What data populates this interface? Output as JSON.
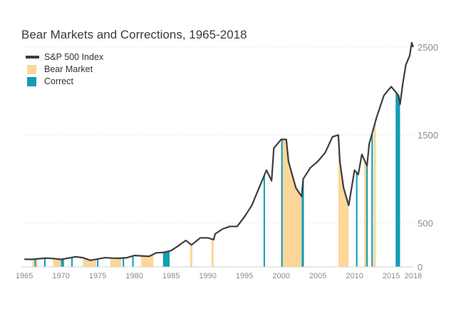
{
  "chart_data": {
    "type": "line",
    "title": "Bear Markets and Corrections, 1965-2018",
    "xlabel": "",
    "ylabel": "",
    "xlim": [
      1964.6,
      2018.0
    ],
    "ylim": [
      0,
      2500
    ],
    "x_ticks": [
      1965,
      1970,
      1975,
      1980,
      1985,
      1990,
      1995,
      2000,
      2005,
      2010,
      2015,
      2018
    ],
    "x_tick_labels": [
      "1965",
      "1970",
      "1975",
      "1980",
      "1985",
      "1990",
      "1995",
      "2000",
      "2005",
      "2010",
      "2015",
      "2018"
    ],
    "y_ticks": [
      0,
      500,
      1500,
      2500
    ],
    "y_tick_labels": [
      "0",
      "500",
      "1500",
      "2500"
    ],
    "grid": true,
    "legend": {
      "position": "top-left",
      "entries": [
        {
          "label": "S&P 500 Index",
          "color": "#3d3d3d",
          "kind": "line"
        },
        {
          "label": "Bear Market",
          "color": "#fdd699",
          "kind": "box"
        },
        {
          "label": "Correct",
          "color": "#149cb5",
          "kind": "box"
        }
      ]
    },
    "series": [
      {
        "name": "S&P 500 Index",
        "color": "#3d3d3d",
        "x": [
          1965,
          1966,
          1967,
          1968,
          1969,
          1970,
          1971,
          1972,
          1973,
          1974,
          1975,
          1976,
          1977,
          1978,
          1979,
          1980,
          1981,
          1982,
          1983,
          1984,
          1985,
          1986,
          1987,
          1987.8,
          1988,
          1989,
          1990,
          1990.8,
          1991,
          1992,
          1993,
          1994,
          1995,
          1996,
          1997,
          1998,
          1998.7,
          1999,
          2000,
          2000.7,
          2001,
          2002,
          2002.8,
          2003,
          2004,
          2005,
          2006,
          2007,
          2007.8,
          2008,
          2008.5,
          2009.2,
          2010,
          2010.5,
          2011,
          2011.7,
          2012,
          2013,
          2014,
          2015,
          2016,
          2016.2,
          2016.6,
          2017,
          2017.5,
          2017.8,
          2018
        ],
        "values": [
          88,
          85,
          93,
          100,
          95,
          85,
          100,
          115,
          105,
          75,
          90,
          105,
          100,
          98,
          105,
          130,
          125,
          120,
          160,
          165,
          185,
          240,
          300,
          250,
          265,
          330,
          330,
          310,
          375,
          430,
          460,
          460,
          570,
          700,
          900,
          1100,
          980,
          1350,
          1450,
          1450,
          1200,
          900,
          800,
          1000,
          1130,
          1200,
          1300,
          1480,
          1500,
          1200,
          900,
          700,
          1100,
          1050,
          1280,
          1150,
          1400,
          1700,
          1950,
          2050,
          1950,
          1850,
          2100,
          2300,
          2400,
          2550,
          2500
        ]
      }
    ],
    "bear_markets": [
      [
        1966.1,
        1966.8
      ],
      [
        1968.9,
        1970.4
      ],
      [
        1973.0,
        1974.8
      ],
      [
        1976.7,
        1978.2
      ],
      [
        1980.9,
        1982.6
      ],
      [
        1987.6,
        1987.9
      ],
      [
        1990.5,
        1990.8
      ],
      [
        2000.2,
        2002.8
      ],
      [
        2007.8,
        2009.2
      ],
      [
        2011.3,
        2011.8
      ],
      [
        2012.6,
        2012.9
      ]
    ],
    "corrections": [
      [
        1966.4,
        1966.6
      ],
      [
        1967.7,
        1967.9
      ],
      [
        1970.0,
        1970.4
      ],
      [
        1971.4,
        1971.6
      ],
      [
        1974.9,
        1975.1
      ],
      [
        1978.4,
        1978.6
      ],
      [
        1979.7,
        1979.9
      ],
      [
        1983.9,
        1984.8
      ],
      [
        1997.6,
        1997.8
      ],
      [
        2000.0,
        2000.2
      ],
      [
        2002.8,
        2003.1
      ],
      [
        2010.2,
        2010.4
      ],
      [
        2011.6,
        2011.8
      ],
      [
        2012.3,
        2012.5
      ],
      [
        2015.6,
        2016.2
      ]
    ]
  }
}
